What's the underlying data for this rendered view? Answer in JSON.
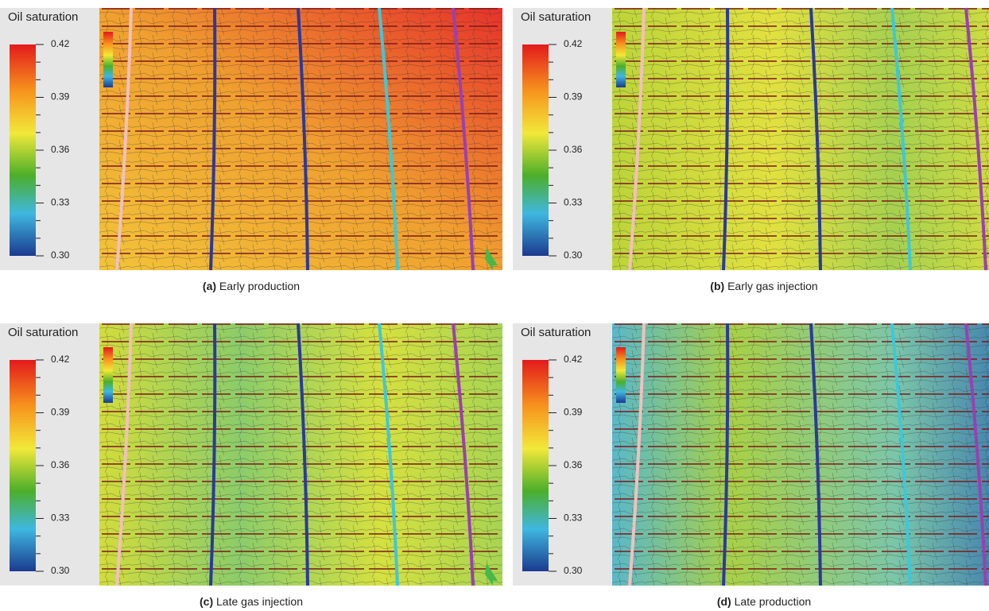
{
  "panels": [
    {
      "label": "(a)",
      "caption": "Early production",
      "colorbar": {
        "title": "Oil saturation",
        "ticks": [
          {
            "value": 0.3,
            "label": "0.30"
          },
          0.33,
          0.36,
          0.39,
          0.42
        ]
      }
    },
    {
      "label": "(b)",
      "caption": "Early gas injection",
      "colorbar": {
        "title": "Oil saturation",
        "ticks": [
          {
            "value": 0.3,
            "label": "0.30"
          },
          0.33,
          0.36,
          0.39,
          0.42
        ]
      }
    },
    {
      "label": "(c)",
      "caption": "Late gas injection",
      "colorbar": {
        "title": "Oil saturation",
        "ticks": [
          {
            "value": 0.3,
            "label": "0.30"
          },
          0.33,
          0.36,
          0.39,
          0.42
        ]
      }
    },
    {
      "label": "(d)",
      "caption": "Late production",
      "colorbar": {
        "title": "Oil saturation",
        "ticks": [
          {
            "value": 0.3,
            "label": "0.30"
          },
          0.33,
          0.36,
          0.39,
          0.42
        ]
      }
    }
  ]
}
